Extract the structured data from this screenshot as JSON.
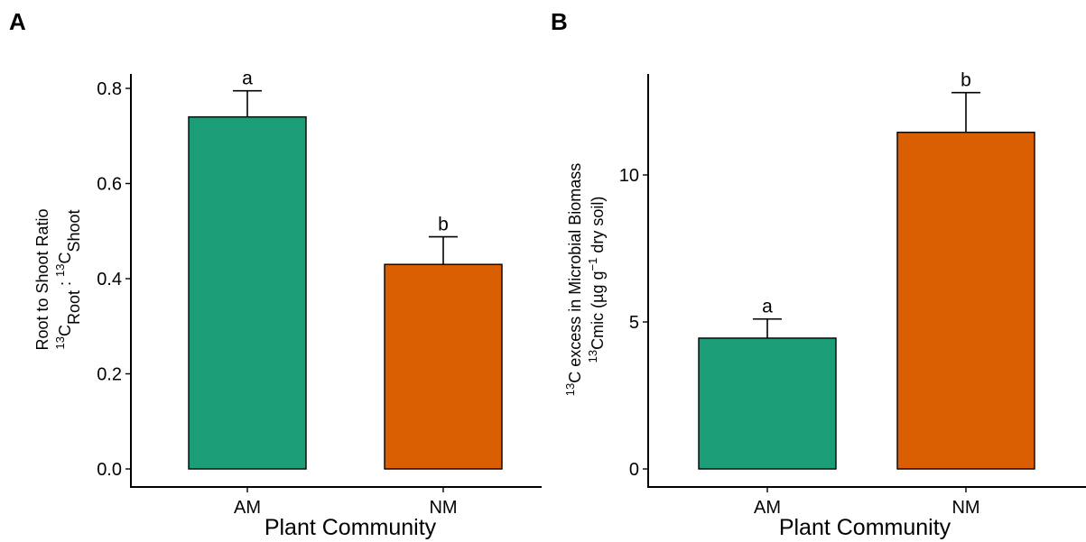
{
  "panels": [
    {
      "panel_label": "A",
      "xlabel": "Plant Community",
      "ylabel_line1": "Root to Shoot Ratio",
      "ylabel_line2": {
        "sup1": "13",
        "part1": "C",
        "sub1": "Root",
        "sep": " : ",
        "sup2": "13",
        "part2": "C",
        "sub2": "Shoot"
      }
    },
    {
      "panel_label": "B",
      "xlabel": "Plant Community",
      "ylabel_line1": {
        "sup": "13",
        "text": "C excess in Microbial Biomass"
      },
      "ylabel_line2": {
        "sup1": "13",
        "part1": "Cmic (µg g",
        "sup2": "−1",
        "part2": " dry soil)"
      }
    }
  ],
  "chart_data": [
    {
      "type": "bar",
      "categories": [
        "AM",
        "NM"
      ],
      "values": [
        0.74,
        0.43
      ],
      "errors": [
        0.055,
        0.058
      ],
      "significance": [
        "a",
        "b"
      ],
      "colors": [
        "#1b9e77",
        "#d95f02"
      ],
      "xlabel": "Plant Community",
      "ylabel": "Root to Shoot Ratio 13CRoot : 13CShoot",
      "ylim": [
        0,
        0.82
      ],
      "yticks": [
        0.0,
        0.2,
        0.4,
        0.6,
        0.8
      ],
      "ytick_labels": [
        "0.0",
        "0.2",
        "0.4",
        "0.6",
        "0.8"
      ],
      "grid": false
    },
    {
      "type": "bar",
      "categories": [
        "AM",
        "NM"
      ],
      "values": [
        4.45,
        11.45
      ],
      "errors": [
        0.65,
        1.35
      ],
      "significance": [
        "a",
        "b"
      ],
      "colors": [
        "#1b9e77",
        "#d95f02"
      ],
      "xlabel": "Plant Community",
      "ylabel": "13C excess in Microbial Biomass 13Cmic (µg g−1 dry soil)",
      "ylim": [
        0,
        13.4
      ],
      "yticks": [
        0,
        5,
        10
      ],
      "ytick_labels": [
        "0",
        "5",
        "10"
      ],
      "grid": false
    }
  ]
}
